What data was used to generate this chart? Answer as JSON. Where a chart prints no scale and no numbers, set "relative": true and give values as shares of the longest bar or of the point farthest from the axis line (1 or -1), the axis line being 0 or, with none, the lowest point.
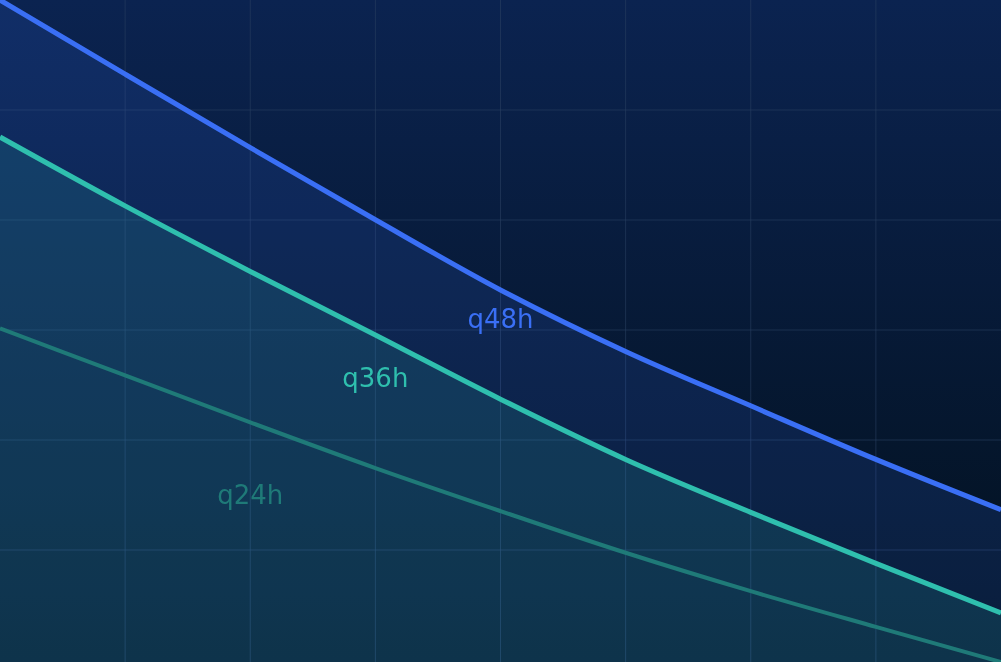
{
  "chart_data": {
    "type": "area",
    "relative": true,
    "grid": true,
    "categories": [
      null,
      null,
      null,
      null,
      null,
      null,
      null,
      null,
      null
    ],
    "series": [
      {
        "name": "q48h",
        "color": "#3a6ff5",
        "values": [
          1,
          0.888,
          0.777,
          0.668,
          0.562,
          0.469,
          0.387,
          0.306,
          0.23
        ]
      },
      {
        "name": "q36h",
        "color": "#2fbfae",
        "values": [
          0.793,
          0.689,
          0.59,
          0.494,
          0.397,
          0.306,
          0.226,
          0.149,
          0.074
        ]
      },
      {
        "name": "q24h",
        "type": "line",
        "color": "#1f7a78",
        "values": [
          0.504,
          0.433,
          0.362,
          0.293,
          0.228,
          0.165,
          0.107,
          0.053,
          0
        ]
      }
    ]
  }
}
